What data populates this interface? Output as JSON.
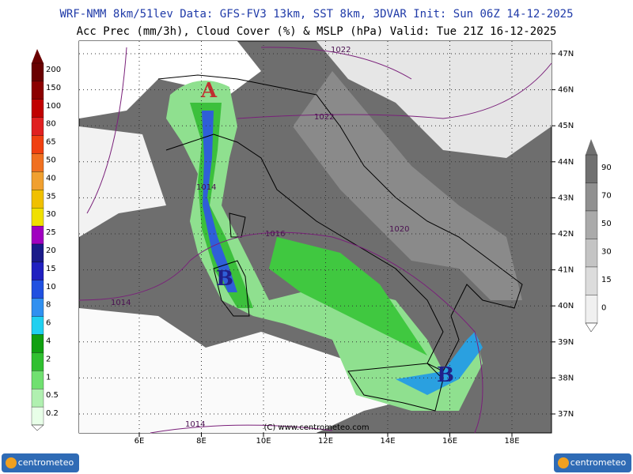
{
  "header": {
    "line1": "WRF-NMM 8km/51lev  Data: GFS-FV3 13km, SST 8km, 3DVAR  Init: Sun 06Z 14-12-2025",
    "line2": "Acc Prec (mm/3h), Cloud Cover (%) & MSLP (hPa)  Valid: Tue 21Z 16-12-2025"
  },
  "precip_scale": [
    "200",
    "150",
    "100",
    "80",
    "65",
    "50",
    "40",
    "35",
    "30",
    "25",
    "20",
    "15",
    "10",
    "8",
    "6",
    "4",
    "2",
    "1",
    "0.5",
    "0.2"
  ],
  "cloud_scale": [
    "90",
    "70",
    "50",
    "30",
    "15",
    "0"
  ],
  "latitudes": [
    "47N",
    "46N",
    "45N",
    "44N",
    "43N",
    "42N",
    "41N",
    "40N",
    "39N",
    "38N",
    "37N"
  ],
  "longitudes": [
    "6E",
    "8E",
    "10E",
    "12E",
    "14E",
    "16E",
    "18E"
  ],
  "isobars": [
    "1022",
    "1022",
    "1020",
    "1016",
    "1014",
    "1014",
    "1014"
  ],
  "pressure_centers": [
    "A",
    "B",
    "B"
  ],
  "copyright": "(C) www.centrometeo.com",
  "logos": [
    "centrometeo",
    "centrometeo"
  ]
}
